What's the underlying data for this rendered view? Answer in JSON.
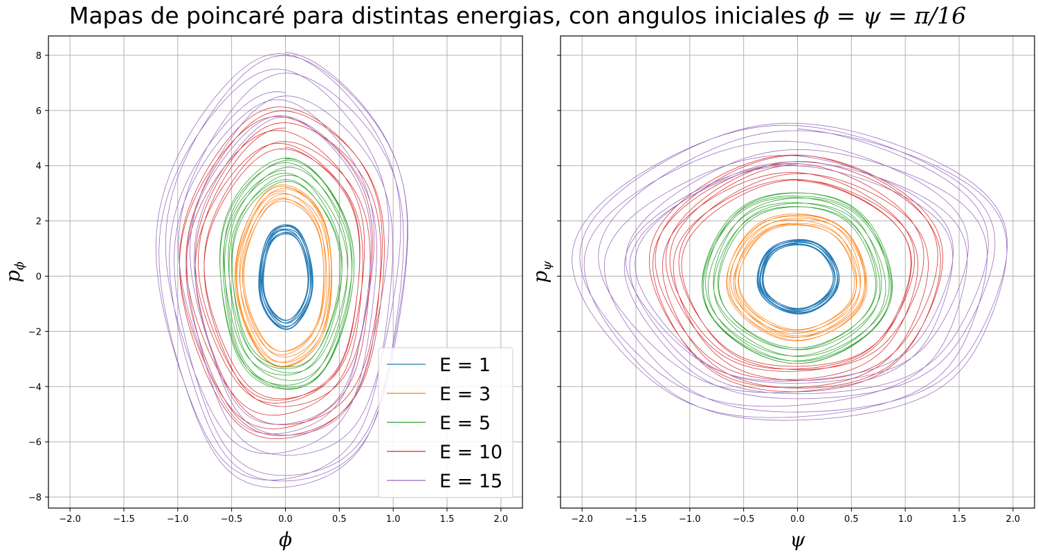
{
  "chart_data": {
    "type": "line",
    "title": "Mapas de poincaré para distintas energias, con angulos iniciales",
    "title_math": "ϕ = ψ = π/16",
    "grid": true,
    "legend_position": "lower-right",
    "series_names": [
      "E = 1",
      "E = 3",
      "E = 5",
      "E = 10",
      "E = 15"
    ],
    "series_colors": [
      "#1f77b4",
      "#ff7f0e",
      "#2ca02c",
      "#d62728",
      "#9467bd"
    ],
    "panels": [
      {
        "xlabel": "ϕ",
        "ylabel_base": "p",
        "ylabel_sub": "ϕ",
        "xlim": [
          -2.2,
          2.2
        ],
        "ylim": [
          -8.4,
          8.7
        ],
        "xticks": [
          -2.0,
          -1.5,
          -1.0,
          -0.5,
          0.0,
          0.5,
          1.0,
          1.5,
          2.0
        ],
        "xtick_labels": [
          "−2.0",
          "−1.5",
          "−1.0",
          "−0.5",
          "0.0",
          "0.5",
          "1.0",
          "1.5",
          "2.0"
        ],
        "yticks": [
          -8,
          -6,
          -4,
          -2,
          0,
          2,
          4,
          6,
          8
        ],
        "ytick_labels": [
          "−8",
          "−6",
          "−4",
          "−2",
          "0",
          "2",
          "4",
          "6",
          "8"
        ],
        "series": [
          {
            "name": "E = 1",
            "x_amplitude": 0.25,
            "y_amplitude": 1.9,
            "spread": 0.18
          },
          {
            "name": "E = 3",
            "x_amplitude": 0.45,
            "y_amplitude": 3.3,
            "spread": 0.18
          },
          {
            "name": "E = 5",
            "x_amplitude": 0.62,
            "y_amplitude": 4.2,
            "spread": 0.2
          },
          {
            "name": "E = 10",
            "x_amplitude": 0.95,
            "y_amplitude": 6.0,
            "spread": 0.25
          },
          {
            "name": "E = 15",
            "x_amplitude": 1.15,
            "y_amplitude": 7.9,
            "spread": 0.3
          }
        ]
      },
      {
        "xlabel": "ψ",
        "ylabel_base": "p",
        "ylabel_sub": "ψ",
        "xlim": [
          -2.2,
          2.2
        ],
        "ylim": [
          -8.4,
          8.7
        ],
        "xticks": [
          -2.0,
          -1.5,
          -1.0,
          -0.5,
          0.0,
          0.5,
          1.0,
          1.5,
          2.0
        ],
        "xtick_labels": [
          "−2.0",
          "−1.5",
          "−1.0",
          "−0.5",
          "0.0",
          "0.5",
          "1.0",
          "1.5",
          "2.0"
        ],
        "yticks": [
          -8,
          -6,
          -4,
          -2,
          0,
          2,
          4,
          6,
          8
        ],
        "ytick_labels": [],
        "series": [
          {
            "name": "E = 1",
            "x_amplitude": 0.38,
            "y_amplitude": 1.35,
            "spread": 0.15
          },
          {
            "name": "E = 3",
            "x_amplitude": 0.65,
            "y_amplitude": 2.3,
            "spread": 0.18
          },
          {
            "name": "E = 5",
            "x_amplitude": 0.88,
            "y_amplitude": 3.1,
            "spread": 0.18
          },
          {
            "name": "E = 10",
            "x_amplitude": 1.35,
            "y_amplitude": 4.3,
            "spread": 0.22
          },
          {
            "name": "E = 15",
            "x_amplitude": 2.0,
            "y_amplitude": 5.4,
            "spread": 0.28
          }
        ]
      }
    ]
  }
}
